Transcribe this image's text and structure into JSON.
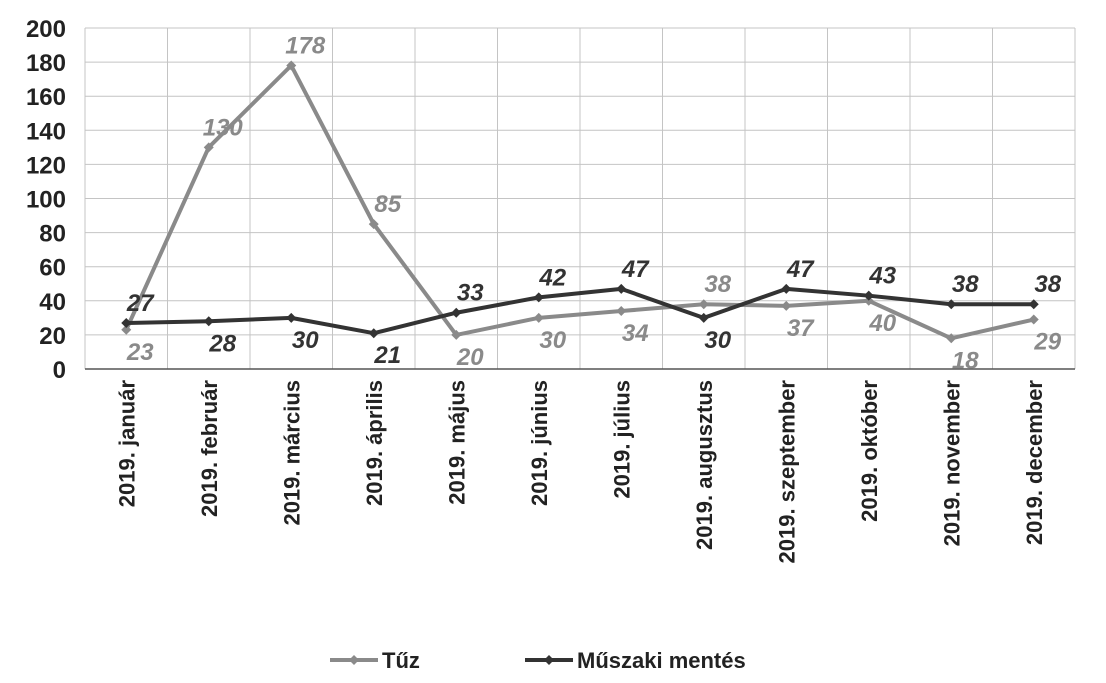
{
  "chart_data": {
    "type": "line",
    "categories": [
      "2019. január",
      "2019. február",
      "2019. március",
      "2019. április",
      "2019. május",
      "2019. június",
      "2019. július",
      "2019. augusztus",
      "2019. szeptember",
      "2019. október",
      "2019. november",
      "2019. december"
    ],
    "series": [
      {
        "name": "Tűz",
        "color": "#8a8a8a",
        "values": [
          23,
          130,
          178,
          85,
          20,
          30,
          34,
          38,
          37,
          40,
          18,
          29
        ],
        "labels": [
          "23",
          "130",
          "178",
          "85",
          "20",
          "30",
          "34",
          "38",
          "37",
          "40",
          "18",
          "29"
        ]
      },
      {
        "name": "Műszaki mentés",
        "color": "#333333",
        "values": [
          27,
          28,
          30,
          21,
          33,
          42,
          47,
          30,
          47,
          43,
          38,
          38
        ],
        "labels": [
          "27",
          "28",
          "30",
          "21",
          "33",
          "42",
          "47",
          "30",
          "47",
          "43",
          "38",
          "38"
        ]
      }
    ],
    "ylim": [
      0,
      200
    ],
    "yticks": [
      "0",
      "20",
      "40",
      "60",
      "80",
      "100",
      "120",
      "140",
      "160",
      "180",
      "200"
    ],
    "grid": true,
    "legend_position": "bottom",
    "title": "",
    "xlabel": "",
    "ylabel": ""
  }
}
